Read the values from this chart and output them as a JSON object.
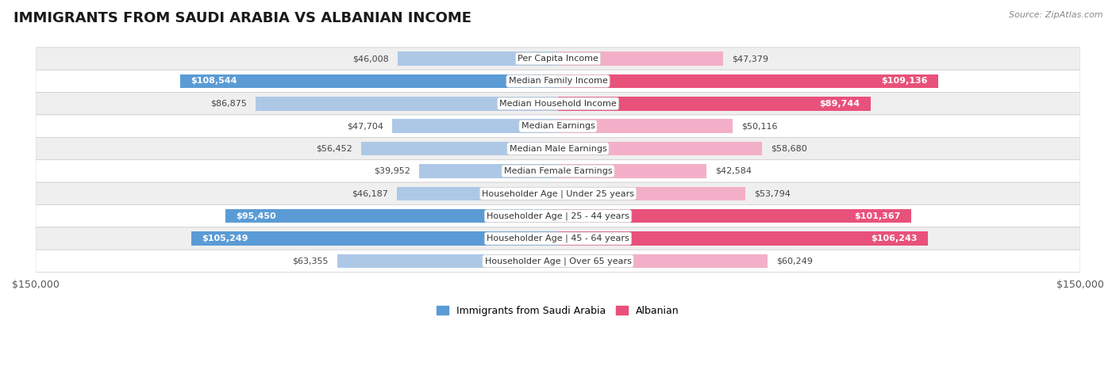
{
  "title": "IMMIGRANTS FROM SAUDI ARABIA VS ALBANIAN INCOME",
  "source": "Source: ZipAtlas.com",
  "categories": [
    "Per Capita Income",
    "Median Family Income",
    "Median Household Income",
    "Median Earnings",
    "Median Male Earnings",
    "Median Female Earnings",
    "Householder Age | Under 25 years",
    "Householder Age | 25 - 44 years",
    "Householder Age | 45 - 64 years",
    "Householder Age | Over 65 years"
  ],
  "saudi_values": [
    46008,
    108544,
    86875,
    47704,
    56452,
    39952,
    46187,
    95450,
    105249,
    63355
  ],
  "albanian_values": [
    47379,
    109136,
    89744,
    50116,
    58680,
    42584,
    53794,
    101367,
    106243,
    60249
  ],
  "saudi_labels": [
    "$46,008",
    "$108,544",
    "$86,875",
    "$47,704",
    "$56,452",
    "$39,952",
    "$46,187",
    "$95,450",
    "$105,249",
    "$63,355"
  ],
  "albanian_labels": [
    "$47,379",
    "$109,136",
    "$89,744",
    "$50,116",
    "$58,680",
    "$42,584",
    "$53,794",
    "$101,367",
    "$106,243",
    "$60,249"
  ],
  "saudi_color_light": "#adc8e6",
  "saudi_color_dark": "#5b9bd5",
  "albanian_color_light": "#f4afc8",
  "albanian_color_dark": "#e8517a",
  "saudi_label_inside": [
    false,
    true,
    false,
    false,
    false,
    false,
    false,
    true,
    true,
    false
  ],
  "albanian_label_inside": [
    false,
    true,
    true,
    false,
    false,
    false,
    false,
    true,
    true,
    false
  ],
  "max_value": 150000,
  "background_color": "#ffffff",
  "row_bg_odd": "#efefef",
  "row_bg_even": "#ffffff",
  "bar_height": 0.62,
  "legend_saudi": "Immigrants from Saudi Arabia",
  "legend_albanian": "Albanian",
  "title_fontsize": 13,
  "label_fontsize": 8,
  "category_fontsize": 8
}
